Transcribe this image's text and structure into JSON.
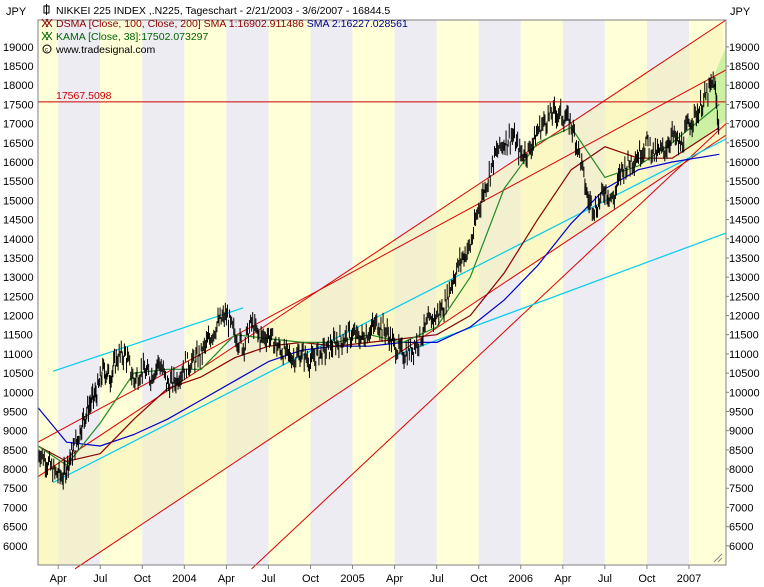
{
  "chart_data": {
    "type": "line",
    "y_unit_left": "JPY",
    "y_unit_right": "JPY",
    "legend": [
      {
        "icon": "candlestick-icon",
        "color": "#000000",
        "text": "NIKKEI 225 INDEX ,.N225, Tageschart - 2/21/2003 - 3/6/2007 - 16844.5"
      },
      {
        "icon": "moving-average-icon",
        "color": "#8b0000",
        "text": "DSMA [Close, 100, Close, 200] SMA 1:16902.911486"
      },
      {
        "icon": "",
        "color": "#00008b",
        "text": "SMA 2:16227.028561"
      },
      {
        "icon": "moving-average-icon",
        "color": "#006400",
        "text": "KAMA [Close, 38]:17502.073297"
      },
      {
        "icon": "copyright-icon",
        "color": "#000000",
        "text": "www.tradesignal.com"
      }
    ],
    "horizontal_line": {
      "value": 17567.5098,
      "label": "17567.5098",
      "color": "#cc0000"
    },
    "ylim": [
      5500,
      19700
    ],
    "y_ticks": [
      6000,
      6500,
      7000,
      7500,
      8000,
      8500,
      9000,
      9500,
      10000,
      10500,
      11000,
      11500,
      12000,
      12500,
      13000,
      13500,
      14000,
      14500,
      15000,
      15500,
      16000,
      16500,
      17000,
      17500,
      18000,
      18500,
      19000
    ],
    "xlim": [
      2003.13,
      2007.22
    ],
    "x_ticks": [
      {
        "label": "Apr",
        "x": 2003.25
      },
      {
        "label": "Jul",
        "x": 2003.5
      },
      {
        "label": "Oct",
        "x": 2003.75
      },
      {
        "label": "2004",
        "x": 2004.0
      },
      {
        "label": "Apr",
        "x": 2004.25
      },
      {
        "label": "Jul",
        "x": 2004.5
      },
      {
        "label": "Oct",
        "x": 2004.75
      },
      {
        "label": "2005",
        "x": 2005.0
      },
      {
        "label": "Apr",
        "x": 2005.25
      },
      {
        "label": "Jul",
        "x": 2005.5
      },
      {
        "label": "Oct",
        "x": 2005.75
      },
      {
        "label": "2006",
        "x": 2006.0
      },
      {
        "label": "Apr",
        "x": 2006.25
      },
      {
        "label": "Jul",
        "x": 2006.5
      },
      {
        "label": "Oct",
        "x": 2006.75
      },
      {
        "label": "2007",
        "x": 2007.0
      }
    ],
    "colors": {
      "price": "#000000",
      "sma1": "#8b0000",
      "sma2": "#0000cc",
      "kama": "#228b22",
      "channel": "#dd0000",
      "trendline": "#00ccee",
      "band_light": "#ffffd8",
      "band_gray": "#ececf2",
      "channel_fill": "#f8f4b8",
      "channel_fill_recent": "#c8f0a0"
    },
    "price_series": {
      "name": "NIKKEI 225 INDEX",
      "x": [
        2003.13,
        2003.18,
        2003.23,
        2003.28,
        2003.32,
        2003.36,
        2003.4,
        2003.44,
        2003.48,
        2003.52,
        2003.56,
        2003.6,
        2003.65,
        2003.7,
        2003.75,
        2003.8,
        2003.85,
        2003.9,
        2003.95,
        2004.0,
        2004.05,
        2004.1,
        2004.15,
        2004.2,
        2004.25,
        2004.3,
        2004.35,
        2004.4,
        2004.45,
        2004.5,
        2004.55,
        2004.6,
        2004.65,
        2004.7,
        2004.75,
        2004.8,
        2004.85,
        2004.9,
        2004.95,
        2005.0,
        2005.05,
        2005.1,
        2005.15,
        2005.2,
        2005.25,
        2005.3,
        2005.35,
        2005.4,
        2005.45,
        2005.5,
        2005.55,
        2005.6,
        2005.65,
        2005.7,
        2005.75,
        2005.8,
        2005.85,
        2005.9,
        2005.95,
        2006.0,
        2006.05,
        2006.1,
        2006.15,
        2006.2,
        2006.25,
        2006.3,
        2006.35,
        2006.4,
        2006.45,
        2006.5,
        2006.55,
        2006.6,
        2006.65,
        2006.7,
        2006.75,
        2006.8,
        2006.85,
        2006.9,
        2006.95,
        2007.0,
        2007.05,
        2007.1,
        2007.15,
        2007.18
      ],
      "y": [
        8500,
        8200,
        7900,
        7800,
        8300,
        8700,
        9300,
        9700,
        10000,
        10600,
        10400,
        10900,
        11000,
        10300,
        10600,
        10400,
        10800,
        10200,
        10300,
        10700,
        10800,
        11000,
        11400,
        11800,
        12000,
        11500,
        11200,
        11800,
        11400,
        11500,
        11200,
        11000,
        10900,
        11000,
        10800,
        11000,
        11100,
        11300,
        11400,
        11500,
        11400,
        11600,
        11800,
        11600,
        11200,
        11000,
        11100,
        11400,
        11800,
        12000,
        12300,
        13000,
        13500,
        13800,
        14800,
        15500,
        16200,
        16500,
        16700,
        16200,
        16300,
        16800,
        17100,
        17300,
        17200,
        17000,
        16200,
        15000,
        14800,
        15300,
        15000,
        15800,
        16000,
        16200,
        16500,
        16200,
        16300,
        16700,
        16400,
        17000,
        17300,
        17700,
        18100,
        16800
      ]
    },
    "sma1_series": {
      "name": "SMA 1",
      "x": [
        2003.13,
        2003.3,
        2003.5,
        2003.7,
        2003.9,
        2004.1,
        2004.3,
        2004.5,
        2004.7,
        2004.9,
        2005.1,
        2005.3,
        2005.5,
        2005.7,
        2005.9,
        2006.1,
        2006.3,
        2006.5,
        2006.7,
        2006.9,
        2007.18
      ],
      "y": [
        8600,
        8200,
        8400,
        9300,
        10100,
        10400,
        10900,
        11200,
        11300,
        11200,
        11300,
        11400,
        11500,
        12000,
        13100,
        14500,
        15800,
        16400,
        16100,
        16100,
        16900
      ]
    },
    "sma2_series": {
      "name": "SMA 2",
      "x": [
        2003.13,
        2003.3,
        2003.5,
        2003.7,
        2003.9,
        2004.1,
        2004.3,
        2004.5,
        2004.7,
        2004.9,
        2005.1,
        2005.3,
        2005.5,
        2005.7,
        2005.9,
        2006.1,
        2006.3,
        2006.5,
        2006.7,
        2006.9,
        2007.18
      ],
      "y": [
        9600,
        8700,
        8600,
        8900,
        9300,
        9800,
        10300,
        10800,
        11100,
        11200,
        11200,
        11300,
        11300,
        11700,
        12400,
        13300,
        14400,
        15300,
        15800,
        16000,
        16200
      ]
    },
    "kama_series": {
      "name": "KAMA",
      "x": [
        2003.13,
        2003.3,
        2003.5,
        2003.7,
        2003.9,
        2004.1,
        2004.3,
        2004.5,
        2004.7,
        2004.9,
        2005.1,
        2005.3,
        2005.5,
        2005.7,
        2005.9,
        2006.1,
        2006.3,
        2006.5,
        2006.7,
        2006.9,
        2007.18
      ],
      "y": [
        8600,
        8100,
        9200,
        10500,
        10600,
        10600,
        11500,
        11400,
        11300,
        11300,
        11500,
        11300,
        11700,
        13000,
        15300,
        16500,
        16900,
        15600,
        15900,
        16500,
        17500
      ]
    },
    "channel_lines": [
      {
        "x": [
          2003.13,
          2007.22
        ],
        "y": [
          7800,
          19700
        ]
      },
      {
        "x": [
          2003.35,
          2007.22
        ],
        "y": [
          5400,
          16700
        ]
      },
      {
        "x": [
          2004.4,
          2007.22
        ],
        "y": [
          5400,
          17000
        ]
      },
      {
        "x": [
          2003.13,
          2007.22
        ],
        "y": [
          8700,
          18400
        ]
      }
    ],
    "trend_lines": [
      {
        "x": [
          2003.22,
          2004.35
        ],
        "y": [
          10550,
          12200
        ]
      },
      {
        "x": [
          2003.22,
          2007.22
        ],
        "y": [
          7650,
          16600
        ]
      },
      {
        "x": [
          2005.25,
          2007.22
        ],
        "y": [
          10950,
          14150
        ]
      }
    ]
  }
}
